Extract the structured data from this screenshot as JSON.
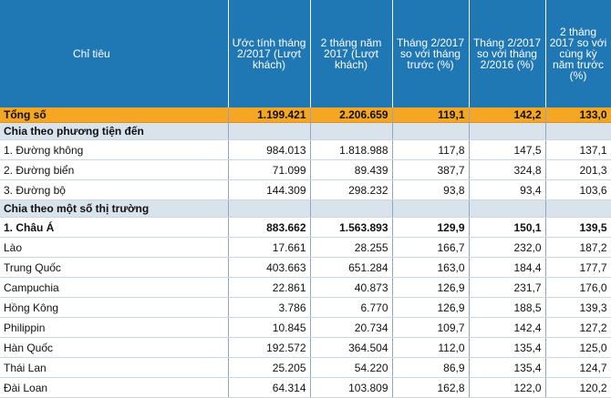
{
  "table": {
    "headers": [
      "Chỉ tiêu",
      "Ước tính tháng 2/2017 (Lượt khách)",
      "2 tháng năm 2017 (Lượt khách)",
      "Tháng 2/2017 so với tháng trước (%)",
      "Tháng 2/2017 so với tháng 2/2016 (%)",
      "2 tháng 2017 so với cùng kỳ năm trước (%)"
    ],
    "colors": {
      "header_bg": "#1f77b4",
      "total_bg": "#f5a623",
      "section_bg": "#d9e3ec"
    },
    "rows": [
      {
        "type": "total",
        "label": "Tổng số",
        "values": [
          "1.199.421",
          "2.206.659",
          "119,1",
          "142,2",
          "133,0"
        ]
      },
      {
        "type": "section",
        "label": "Chia theo phương tiện đến"
      },
      {
        "type": "data",
        "label": "1. Đường không",
        "values": [
          "984.013",
          "1.818.988",
          "117,8",
          "147,5",
          "137,1"
        ]
      },
      {
        "type": "data",
        "label": "2. Đường biển",
        "values": [
          "71.099",
          "89.439",
          "387,7",
          "324,8",
          "201,3"
        ]
      },
      {
        "type": "data",
        "label": "3. Đường bộ",
        "values": [
          "144.309",
          "298.232",
          "93,8",
          "93,4",
          "103,6"
        ]
      },
      {
        "type": "section",
        "label": "Chia theo một số thị trường"
      },
      {
        "type": "bold",
        "label": "1. Châu Á",
        "values": [
          "883.662",
          "1.563.893",
          "129,9",
          "150,1",
          "139,5"
        ]
      },
      {
        "type": "data",
        "label": "Lào",
        "values": [
          "17.661",
          "28.255",
          "166,7",
          "232,0",
          "187,2"
        ]
      },
      {
        "type": "data",
        "label": "Trung Quốc",
        "values": [
          "403.663",
          "651.284",
          "163,0",
          "184,4",
          "177,7"
        ]
      },
      {
        "type": "data",
        "label": "Campuchia",
        "values": [
          "22.861",
          "40.873",
          "126,9",
          "231,7",
          "176,0"
        ]
      },
      {
        "type": "data",
        "label": "Hồng Kông",
        "values": [
          "3.786",
          "6.770",
          "126,9",
          "188,5",
          "139,3"
        ]
      },
      {
        "type": "data",
        "label": "Philippin",
        "values": [
          "10.845",
          "20.734",
          "109,7",
          "142,4",
          "127,2"
        ]
      },
      {
        "type": "data",
        "label": "Hàn Quốc",
        "values": [
          "192.572",
          "364.504",
          "112,0",
          "135,4",
          "125,0"
        ]
      },
      {
        "type": "data",
        "label": "Thái Lan",
        "values": [
          "25.205",
          "54.220",
          "86,9",
          "135,4",
          "124,7"
        ]
      },
      {
        "type": "data",
        "label": "Đài Loan",
        "values": [
          "64.314",
          "103.809",
          "162,8",
          "122,0",
          "120,2"
        ]
      }
    ]
  }
}
